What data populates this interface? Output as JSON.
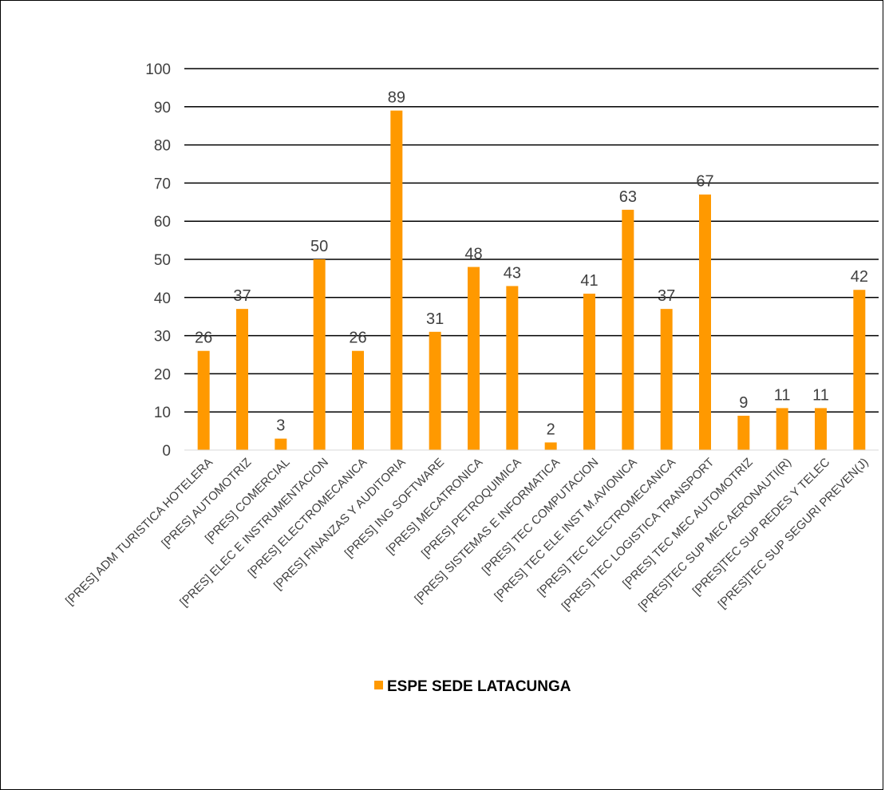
{
  "chart_data": {
    "type": "bar",
    "title": "",
    "xlabel": "",
    "ylabel": "",
    "ylim": [
      0,
      100
    ],
    "yticks": [
      0,
      10,
      20,
      30,
      40,
      50,
      60,
      70,
      80,
      90,
      100
    ],
    "grid": "horizontal",
    "legend_position": "bottom",
    "categories": [
      "[PRES] ADM TURISTICA HOTELERA",
      "[PRES] AUTOMOTRIZ",
      "[PRES] COMERCIAL",
      "[PRES] ELEC E INSTRUMENTACION",
      "[PRES] ELECTROMECANICA",
      "[PRES] FINANZAS Y AUDITORIA",
      "[PRES] ING SOFTWARE",
      "[PRES] MECATRONICA",
      "[PRES] PETROQUIMICA",
      "[PRES] SISTEMAS E INFORMATICA",
      "[PRES] TEC COMPUTACION",
      "[PRES] TEC ELE INST M.AVIONICA",
      "[PRES] TEC ELECTROMECANICA",
      "[PRES] TEC LOGISTICA TRANSPORT",
      "[PRES] TEC MEC AUTOMOTRIZ",
      "[PRES]TEC SUP MEC AERONAUTI(R)",
      "[PRES]TEC SUP REDES Y TELEC",
      "[PRES]TEC SUP SEGURI PREVEN(J)"
    ],
    "series": [
      {
        "name": "ESPE SEDE LATACUNGA",
        "color": "#FF9900",
        "values": [
          26,
          37,
          3,
          50,
          26,
          89,
          31,
          48,
          43,
          2,
          41,
          63,
          37,
          67,
          9,
          11,
          11,
          42
        ]
      }
    ]
  }
}
